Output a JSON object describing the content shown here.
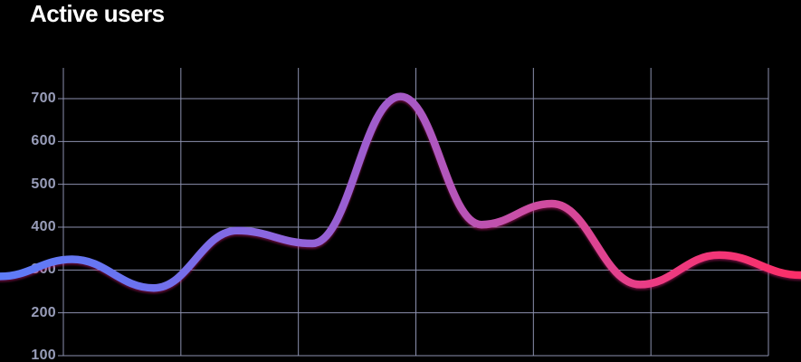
{
  "title": "Active users",
  "colors": {
    "background": "#000000",
    "title_text": "#ffffff",
    "grid_line": "#8B90AE",
    "tick_label": "#989DB9",
    "line_gradient": [
      {
        "offset": 0.0,
        "color": "#5E7CF7"
      },
      {
        "offset": 0.17,
        "color": "#6B73F0"
      },
      {
        "offset": 0.33,
        "color": "#8A66DF"
      },
      {
        "offset": 0.5,
        "color": "#A55AC8"
      },
      {
        "offset": 0.65,
        "color": "#C94FA6"
      },
      {
        "offset": 0.82,
        "color": "#EC3B82"
      },
      {
        "offset": 1.0,
        "color": "#FB2E68"
      }
    ]
  },
  "chart_data": {
    "type": "line",
    "title": "Active users",
    "xlabel": "",
    "ylabel": "",
    "yticks": [
      "700",
      "600",
      "500",
      "400",
      "300",
      "200",
      "100"
    ],
    "ylim": [
      100,
      700
    ],
    "grid": "on",
    "legend": "none",
    "line_style": "smooth, thick, gradient left-to-right blue to purple to hot pink",
    "series": [
      {
        "name": "Active users",
        "points": [
          {
            "x": 0.0,
            "v": 285
          },
          {
            "x": 0.09,
            "v": 325
          },
          {
            "x": 0.192,
            "v": 258
          },
          {
            "x": 0.296,
            "v": 392
          },
          {
            "x": 0.39,
            "v": 362
          },
          {
            "x": 0.5,
            "v": 705
          },
          {
            "x": 0.601,
            "v": 406
          },
          {
            "x": 0.689,
            "v": 455
          },
          {
            "x": 0.799,
            "v": 266
          },
          {
            "x": 0.898,
            "v": 335
          },
          {
            "x": 1.0,
            "v": 288
          }
        ]
      }
    ]
  }
}
